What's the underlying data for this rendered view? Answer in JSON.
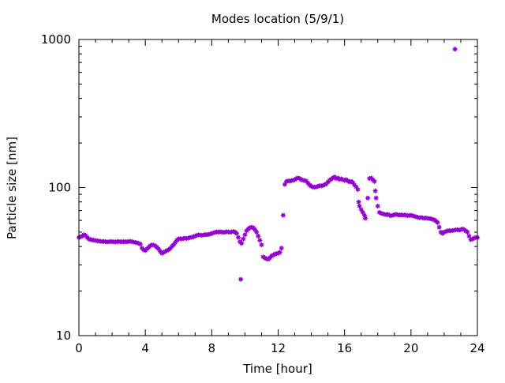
{
  "chart_data": {
    "type": "scatter",
    "title": "Modes location (5/9/1)",
    "xlabel": "Time [hour]",
    "ylabel": "Particle size [nm]",
    "xlim": [
      0,
      24
    ],
    "ylim": [
      10,
      1000
    ],
    "y_scale": "log",
    "x_ticks": [
      0,
      4,
      8,
      12,
      16,
      20,
      24
    ],
    "x_tick_labels": [
      "0",
      "4",
      "8",
      "12",
      "16",
      "20",
      "24"
    ],
    "y_ticks": [
      10,
      100,
      1000
    ],
    "y_tick_labels": [
      "10",
      "100",
      "1000"
    ],
    "grid": false,
    "marker_color": "#9400d3",
    "marker": "asterisk",
    "series": [
      {
        "points": [
          [
            0.0,
            46
          ],
          [
            0.1,
            46.5
          ],
          [
            0.2,
            47
          ],
          [
            0.3,
            48
          ],
          [
            0.4,
            47.5
          ],
          [
            0.5,
            46
          ],
          [
            0.6,
            45
          ],
          [
            0.7,
            44.5
          ],
          [
            0.8,
            44.3
          ],
          [
            0.9,
            44.1
          ],
          [
            1.0,
            43.9
          ],
          [
            1.1,
            43.7
          ],
          [
            1.2,
            43.5
          ],
          [
            1.3,
            43.3
          ],
          [
            1.4,
            43.2
          ],
          [
            1.5,
            43.3
          ],
          [
            1.6,
            43.1
          ],
          [
            1.7,
            42.9
          ],
          [
            1.8,
            43.0
          ],
          [
            1.9,
            43.2
          ],
          [
            2.0,
            43.1
          ],
          [
            2.1,
            43.0
          ],
          [
            2.2,
            42.9
          ],
          [
            2.3,
            43.1
          ],
          [
            2.4,
            43.2
          ],
          [
            2.5,
            43.0
          ],
          [
            2.6,
            43.1
          ],
          [
            2.7,
            43.0
          ],
          [
            2.8,
            43.1
          ],
          [
            2.9,
            43.0
          ],
          [
            3.0,
            43.2
          ],
          [
            3.1,
            43.3
          ],
          [
            3.2,
            43.1
          ],
          [
            3.3,
            42.8
          ],
          [
            3.4,
            42.6
          ],
          [
            3.5,
            42.4
          ],
          [
            3.6,
            42.0
          ],
          [
            3.7,
            41.5
          ],
          [
            3.8,
            39.0
          ],
          [
            3.9,
            38.0
          ],
          [
            4.0,
            37.5
          ],
          [
            4.1,
            38.5
          ],
          [
            4.2,
            39.5
          ],
          [
            4.3,
            40.5
          ],
          [
            4.4,
            41.0
          ],
          [
            4.5,
            40.8
          ],
          [
            4.6,
            40.4
          ],
          [
            4.7,
            39.5
          ],
          [
            4.8,
            38.5
          ],
          [
            4.9,
            37.0
          ],
          [
            5.0,
            36.0
          ],
          [
            5.1,
            36.5
          ],
          [
            5.2,
            37.0
          ],
          [
            5.3,
            37.5
          ],
          [
            5.4,
            38.0
          ],
          [
            5.5,
            38.8
          ],
          [
            5.6,
            40.0
          ],
          [
            5.7,
            41.0
          ],
          [
            5.8,
            42.5
          ],
          [
            5.9,
            44.0
          ],
          [
            6.0,
            45.0
          ],
          [
            6.1,
            45.2
          ],
          [
            6.2,
            45.0
          ],
          [
            6.3,
            45.3
          ],
          [
            6.4,
            45.5
          ],
          [
            6.5,
            45.3
          ],
          [
            6.6,
            45.6
          ],
          [
            6.7,
            46.0
          ],
          [
            6.8,
            46.2
          ],
          [
            6.9,
            46.5
          ],
          [
            7.0,
            47.0
          ],
          [
            7.1,
            47.5
          ],
          [
            7.2,
            48.0
          ],
          [
            7.3,
            47.8
          ],
          [
            7.4,
            47.5
          ],
          [
            7.5,
            47.8
          ],
          [
            7.6,
            48.2
          ],
          [
            7.7,
            48.0
          ],
          [
            7.8,
            48.3
          ],
          [
            7.9,
            48.5
          ],
          [
            8.0,
            49.0
          ],
          [
            8.1,
            49.5
          ],
          [
            8.2,
            49.8
          ],
          [
            8.3,
            50.2
          ],
          [
            8.4,
            50.0
          ],
          [
            8.5,
            50.3
          ],
          [
            8.6,
            50.1
          ],
          [
            8.7,
            49.8
          ],
          [
            8.8,
            50.0
          ],
          [
            8.9,
            50.3
          ],
          [
            9.0,
            50.1
          ],
          [
            9.1,
            49.9
          ],
          [
            9.2,
            50.2
          ],
          [
            9.3,
            50.5
          ],
          [
            9.4,
            50.0
          ],
          [
            9.5,
            49.0
          ],
          [
            9.6,
            46.0
          ],
          [
            9.7,
            43.0
          ],
          [
            9.75,
            24.0
          ],
          [
            9.8,
            42.0
          ],
          [
            9.9,
            45.0
          ],
          [
            10.0,
            48.0
          ],
          [
            10.1,
            51.0
          ],
          [
            10.2,
            52.5
          ],
          [
            10.3,
            53.5
          ],
          [
            10.4,
            54.0
          ],
          [
            10.5,
            53.5
          ],
          [
            10.6,
            52.0
          ],
          [
            10.7,
            50.0
          ],
          [
            10.8,
            47.0
          ],
          [
            10.9,
            44.0
          ],
          [
            11.0,
            41.0
          ],
          [
            11.1,
            34.0
          ],
          [
            11.2,
            33.5
          ],
          [
            11.3,
            33.0
          ],
          [
            11.4,
            32.8
          ],
          [
            11.5,
            33.5
          ],
          [
            11.6,
            34.5
          ],
          [
            11.7,
            35.0
          ],
          [
            11.8,
            35.5
          ],
          [
            11.9,
            35.8
          ],
          [
            12.0,
            36.0
          ],
          [
            12.1,
            36.5
          ],
          [
            12.2,
            39.0
          ],
          [
            12.3,
            65.0
          ],
          [
            12.4,
            105.0
          ],
          [
            12.5,
            110.0
          ],
          [
            12.6,
            111.0
          ],
          [
            12.7,
            110.5
          ],
          [
            12.8,
            111.5
          ],
          [
            12.9,
            112.0
          ],
          [
            13.0,
            113.0
          ],
          [
            13.1,
            115.0
          ],
          [
            13.2,
            116.0
          ],
          [
            13.3,
            115.0
          ],
          [
            13.4,
            113.0
          ],
          [
            13.5,
            112.0
          ],
          [
            13.6,
            111.5
          ],
          [
            13.7,
            110.5
          ],
          [
            13.8,
            107.0
          ],
          [
            13.9,
            104.0
          ],
          [
            14.0,
            102.0
          ],
          [
            14.1,
            101.0
          ],
          [
            14.2,
            100.5
          ],
          [
            14.3,
            101.0
          ],
          [
            14.4,
            102.0
          ],
          [
            14.5,
            103.0
          ],
          [
            14.6,
            102.5
          ],
          [
            14.7,
            103.5
          ],
          [
            14.8,
            104.5
          ],
          [
            14.9,
            106.0
          ],
          [
            15.0,
            109.0
          ],
          [
            15.1,
            112.0
          ],
          [
            15.2,
            114.0
          ],
          [
            15.3,
            116.0
          ],
          [
            15.4,
            118.0
          ],
          [
            15.5,
            115.0
          ],
          [
            15.6,
            116.0
          ],
          [
            15.7,
            113.5
          ],
          [
            15.8,
            114.5
          ],
          [
            15.9,
            113.0
          ],
          [
            16.0,
            112.0
          ],
          [
            16.1,
            113.0
          ],
          [
            16.2,
            111.0
          ],
          [
            16.3,
            109.0
          ],
          [
            16.4,
            110.0
          ],
          [
            16.5,
            108.0
          ],
          [
            16.6,
            104.0
          ],
          [
            16.7,
            101.0
          ],
          [
            16.8,
            97.0
          ],
          [
            16.85,
            80.0
          ],
          [
            16.9,
            75.0
          ],
          [
            17.0,
            71.0
          ],
          [
            17.1,
            68.0
          ],
          [
            17.2,
            65.0
          ],
          [
            17.25,
            62.0
          ],
          [
            17.4,
            85.0
          ],
          [
            17.5,
            115.0
          ],
          [
            17.6,
            116.0
          ],
          [
            17.7,
            113.0
          ],
          [
            17.8,
            110.0
          ],
          [
            17.85,
            95.0
          ],
          [
            17.9,
            85.0
          ],
          [
            18.0,
            75.0
          ],
          [
            18.1,
            68.0
          ],
          [
            18.2,
            67.0
          ],
          [
            18.3,
            66.5
          ],
          [
            18.4,
            66.0
          ],
          [
            18.5,
            65.5
          ],
          [
            18.6,
            66.0
          ],
          [
            18.7,
            65.0
          ],
          [
            18.8,
            64.5
          ],
          [
            18.9,
            65.0
          ],
          [
            19.0,
            65.5
          ],
          [
            19.1,
            66.0
          ],
          [
            19.2,
            65.5
          ],
          [
            19.3,
            65.0
          ],
          [
            19.4,
            65.5
          ],
          [
            19.5,
            65.0
          ],
          [
            19.6,
            65.3
          ],
          [
            19.7,
            65.0
          ],
          [
            19.8,
            64.5
          ],
          [
            19.9,
            64.8
          ],
          [
            20.0,
            65.0
          ],
          [
            20.1,
            64.5
          ],
          [
            20.2,
            64.0
          ],
          [
            20.3,
            63.5
          ],
          [
            20.4,
            63.0
          ],
          [
            20.5,
            62.5
          ],
          [
            20.6,
            62.8
          ],
          [
            20.7,
            62.5
          ],
          [
            20.8,
            62.0
          ],
          [
            20.9,
            62.3
          ],
          [
            21.0,
            62.0
          ],
          [
            21.1,
            61.8
          ],
          [
            21.2,
            61.5
          ],
          [
            21.3,
            61.0
          ],
          [
            21.4,
            60.5
          ],
          [
            21.5,
            59.5
          ],
          [
            21.6,
            58.0
          ],
          [
            21.7,
            54.0
          ],
          [
            21.8,
            50.0
          ],
          [
            21.9,
            49.0
          ],
          [
            22.0,
            50.0
          ],
          [
            22.1,
            50.5
          ],
          [
            22.2,
            51.0
          ],
          [
            22.3,
            51.2
          ],
          [
            22.4,
            51.0
          ],
          [
            22.5,
            51.3
          ],
          [
            22.6,
            51.5
          ],
          [
            22.65,
            860.0
          ],
          [
            22.7,
            51.8
          ],
          [
            22.8,
            52.0
          ],
          [
            22.9,
            51.5
          ],
          [
            23.0,
            52.0
          ],
          [
            23.1,
            52.5
          ],
          [
            23.2,
            52.0
          ],
          [
            23.3,
            51.0
          ],
          [
            23.4,
            50.0
          ],
          [
            23.5,
            47.0
          ],
          [
            23.6,
            44.5
          ],
          [
            23.7,
            45.0
          ],
          [
            23.8,
            45.5
          ],
          [
            23.9,
            46.0
          ],
          [
            24.0,
            46.0
          ]
        ]
      }
    ]
  }
}
